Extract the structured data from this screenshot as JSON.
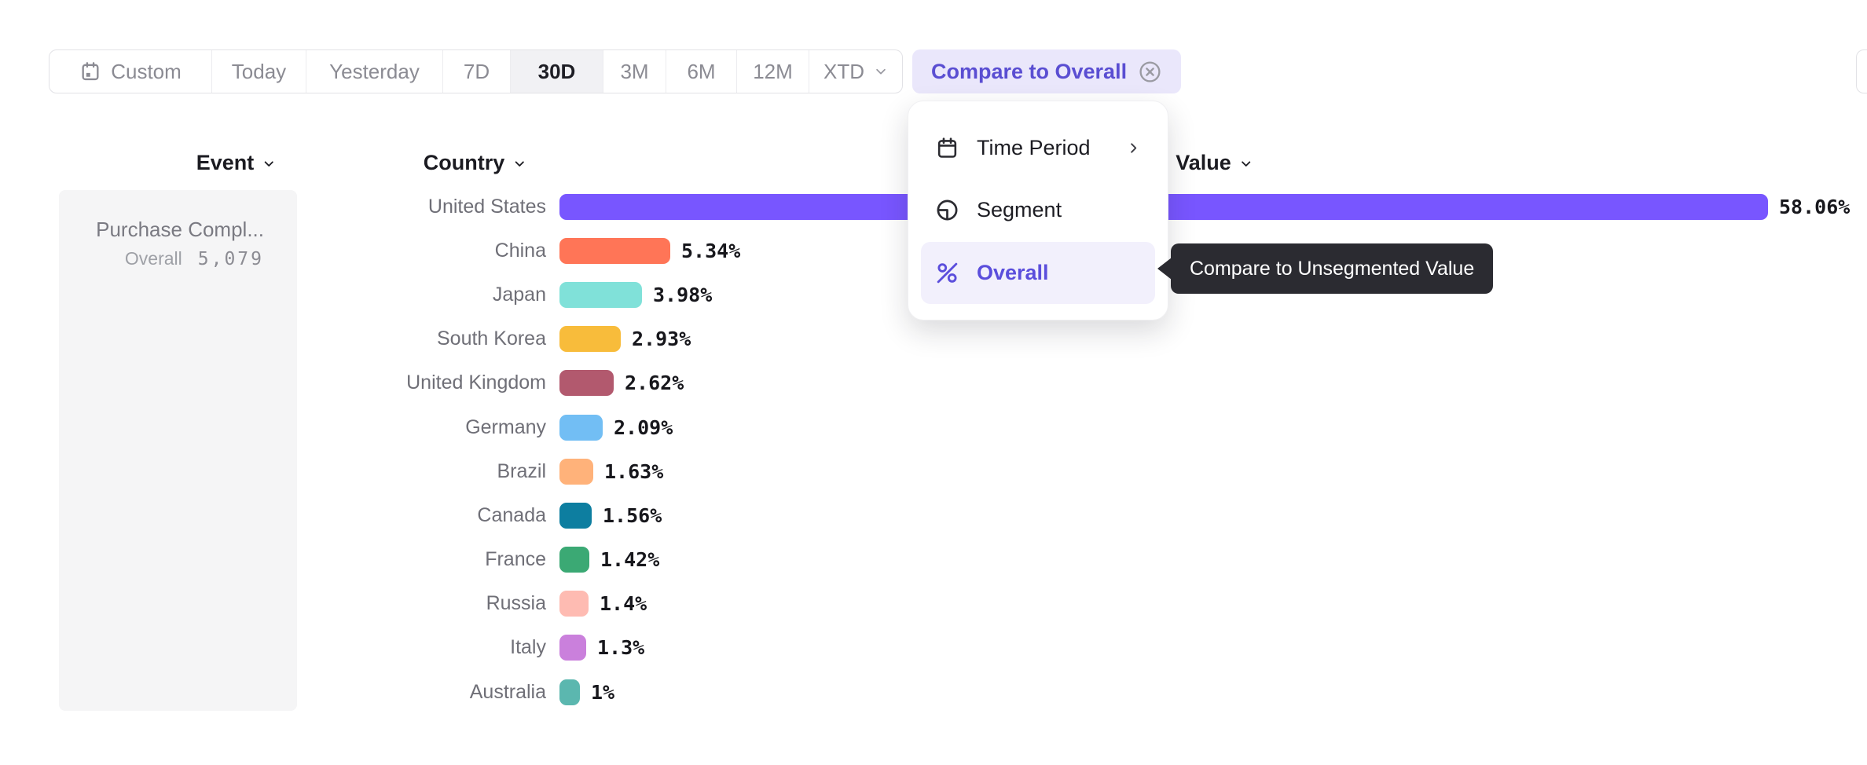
{
  "toolbar": {
    "buttons": [
      {
        "id": "custom",
        "label": "Custom",
        "icon": "custom-calendar-icon"
      },
      {
        "id": "today",
        "label": "Today"
      },
      {
        "id": "yesterday",
        "label": "Yesterday"
      },
      {
        "id": "7d",
        "label": "7D"
      },
      {
        "id": "30d",
        "label": "30D",
        "selected": true
      },
      {
        "id": "3m",
        "label": "3M"
      },
      {
        "id": "6m",
        "label": "6M"
      },
      {
        "id": "12m",
        "label": "12M"
      },
      {
        "id": "xtd",
        "label": "XTD",
        "icon_right": "chevron-down-icon"
      }
    ],
    "compare_button": {
      "label": "Compare to Overall",
      "icon": "x-circle-icon",
      "text_color": "#5A4ED2",
      "bg_color": "#EAE7FB"
    }
  },
  "columns": {
    "event": "Event",
    "country": "Country",
    "value": "Value"
  },
  "event_panel": {
    "title": "Purchase Compl...",
    "overall_label": "Overall",
    "overall_value": "5,079"
  },
  "menu": {
    "items": [
      {
        "label": "Time Period",
        "icon": "calendar-icon",
        "has_submenu": true
      },
      {
        "label": "Segment",
        "icon": "segment-icon"
      },
      {
        "label": "Overall",
        "icon": "percent-icon",
        "active": true,
        "active_color": "#5B4EDC"
      }
    ]
  },
  "tooltip": {
    "text": "Compare to Unsegmented Value",
    "bg_color": "#2B2B31"
  },
  "chart_data": {
    "type": "bar",
    "orientation": "horizontal",
    "title": "",
    "xlabel": "Value",
    "ylabel": "Country",
    "xlim": [
      0,
      58.06
    ],
    "grid": false,
    "categories": [
      "United States",
      "China",
      "Japan",
      "South Korea",
      "United Kingdom",
      "Germany",
      "Brazil",
      "Canada",
      "France",
      "Russia",
      "Italy",
      "Australia"
    ],
    "values": [
      58.06,
      5.34,
      3.98,
      2.93,
      2.62,
      2.09,
      1.63,
      1.56,
      1.42,
      1.4,
      1.3,
      1
    ],
    "value_labels": [
      "58.06%",
      "5.34%",
      "3.98%",
      "2.93%",
      "2.62%",
      "2.09%",
      "1.63%",
      "1.56%",
      "1.42%",
      "1.4%",
      "1.3%",
      "1%"
    ],
    "colors": [
      "#7856FF",
      "#FF7557",
      "#80E1D9",
      "#F8BC3B",
      "#B2596E",
      "#72BEF4",
      "#FFB27A",
      "#0D7EA0",
      "#3BA974",
      "#FEBBB2",
      "#CA80DC",
      "#5BB7AF"
    ]
  }
}
